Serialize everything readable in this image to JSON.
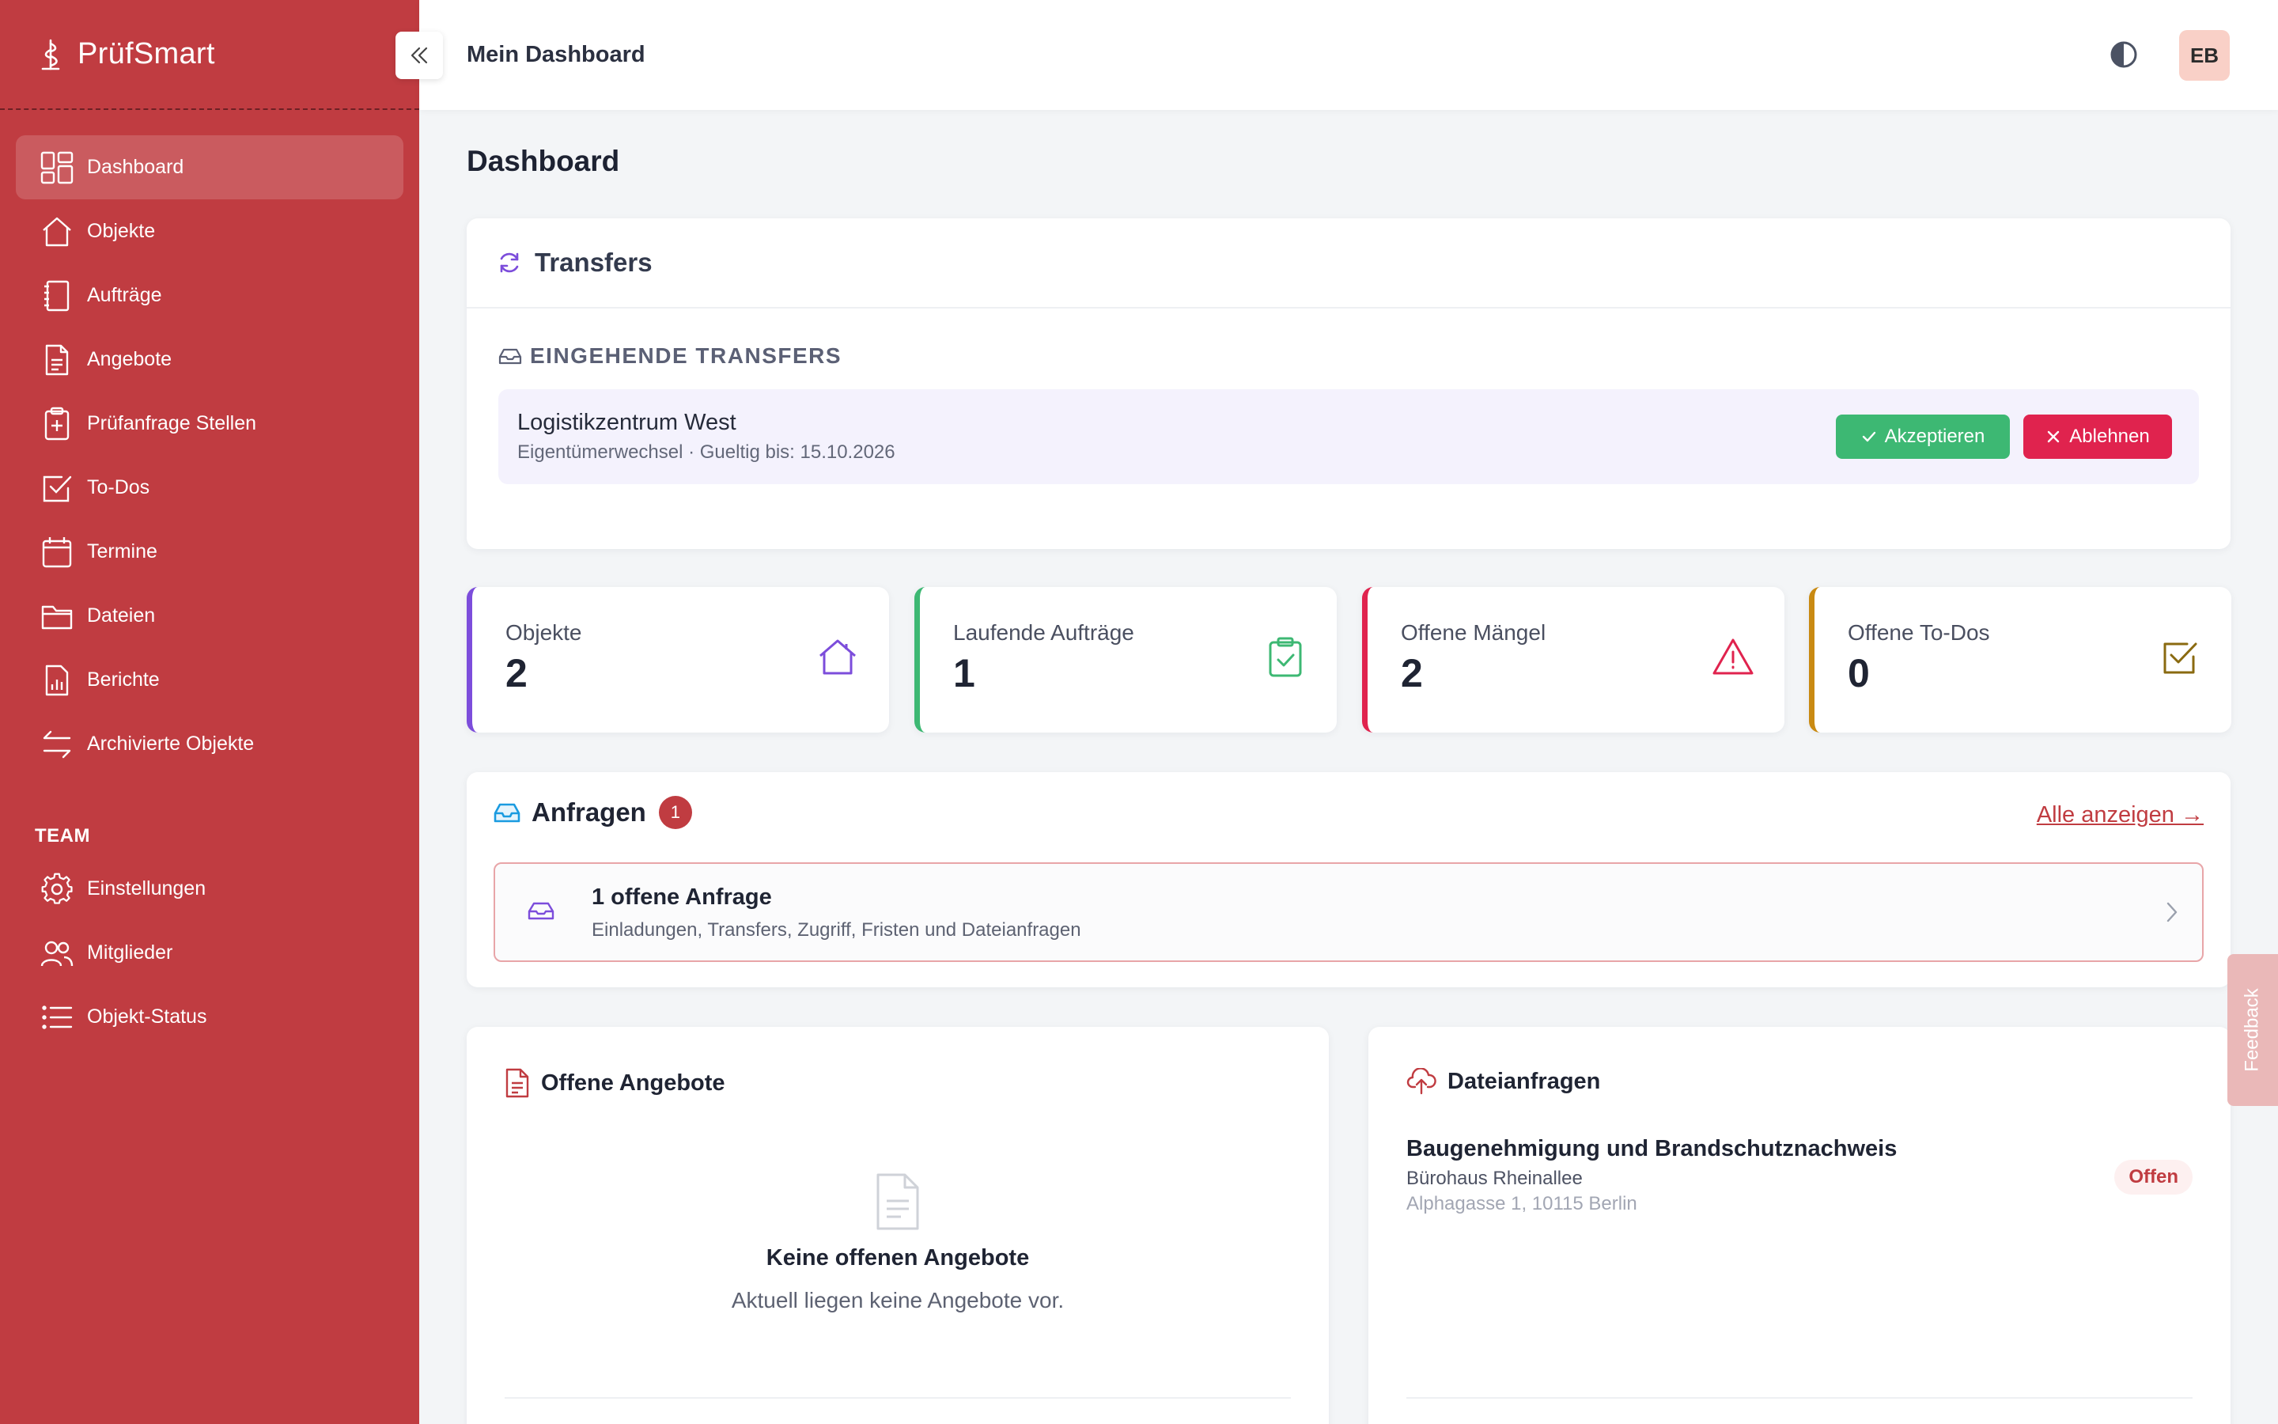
{
  "app": {
    "name": "PrüfSmart"
  },
  "sidebar": {
    "items": [
      {
        "label": "Dashboard",
        "icon": "dashboard-icon",
        "active": true
      },
      {
        "label": "Objekte",
        "icon": "home-icon"
      },
      {
        "label": "Aufträge",
        "icon": "notebook-icon"
      },
      {
        "label": "Angebote",
        "icon": "document-icon"
      },
      {
        "label": "Prüfanfrage Stellen",
        "icon": "clipboard-plus-icon"
      },
      {
        "label": "To-Dos",
        "icon": "checkbox-icon"
      },
      {
        "label": "Termine",
        "icon": "calendar-icon"
      },
      {
        "label": "Dateien",
        "icon": "folder-icon"
      },
      {
        "label": "Berichte",
        "icon": "report-icon"
      },
      {
        "label": "Archivierte Objekte",
        "icon": "arrows-icon"
      }
    ],
    "team_title": "TEAM",
    "team_items": [
      {
        "label": "Einstellungen",
        "icon": "gear-icon"
      },
      {
        "label": "Mitglieder",
        "icon": "users-icon"
      },
      {
        "label": "Objekt-Status",
        "icon": "list-icon"
      }
    ]
  },
  "header": {
    "title": "Mein Dashboard",
    "avatar_initials": "EB"
  },
  "page": {
    "title": "Dashboard"
  },
  "transfers": {
    "title": "Transfers",
    "incoming_label": "EINGEHENDE TRANSFERS",
    "items": [
      {
        "name": "Logistikzentrum West",
        "meta": "Eigentümerwechsel · Gueltig bis: 15.10.2026",
        "accept_label": "Akzeptieren",
        "reject_label": "Ablehnen"
      }
    ]
  },
  "stats": [
    {
      "label": "Objekte",
      "value": "2",
      "color": "#7c4ddb",
      "icon": "home-icon"
    },
    {
      "label": "Laufende Aufträge",
      "value": "1",
      "color": "#3db873",
      "icon": "clipboard-check-icon"
    },
    {
      "label": "Offene Mängel",
      "value": "2",
      "color": "#e0234e",
      "icon": "warning-icon"
    },
    {
      "label": "Offene To-Dos",
      "value": "0",
      "color": "#c98a12",
      "icon": "checkbox-icon"
    }
  ],
  "anfragen": {
    "title": "Anfragen",
    "badge": "1",
    "show_all": "Alle anzeigen →",
    "row_title": "1 offene Anfrage",
    "row_subtitle": "Einladungen, Transfers, Zugriff, Fristen und Dateianfragen"
  },
  "angebote": {
    "title": "Offene Angebote",
    "empty_title": "Keine offenen Angebote",
    "empty_subtitle": "Aktuell liegen keine Angebote vor."
  },
  "dateianfragen": {
    "title": "Dateianfragen",
    "items": [
      {
        "title": "Baugenehmigung und Brandschutznachweis",
        "object": "Bürohaus Rheinallee",
        "address": "Alphagasse 1, 10115 Berlin",
        "status": "Offen"
      }
    ]
  },
  "feedback": {
    "label": "Feedback"
  },
  "colors": {
    "brand": "#c03c41",
    "accept": "#3db873",
    "reject": "#e0234e",
    "accent": "#7c4ddb"
  }
}
